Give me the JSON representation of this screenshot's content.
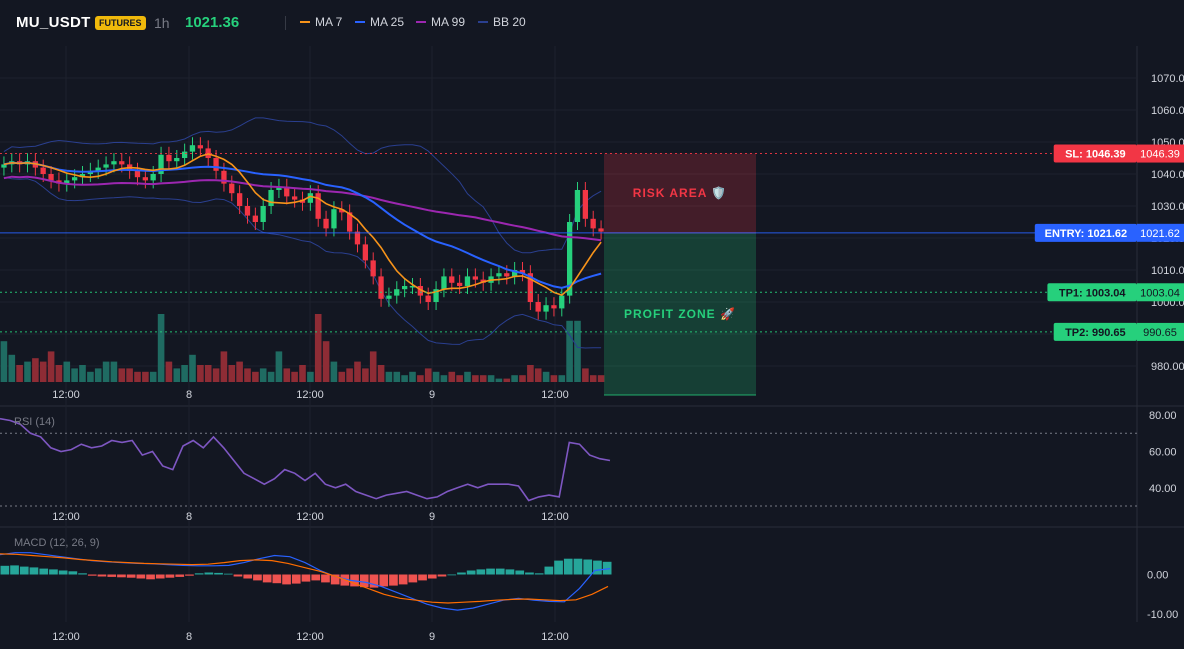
{
  "header": {
    "symbol": "MU_USDT",
    "badge": "FUTURES",
    "timeframe": "1h",
    "price": "1021.36",
    "legend": [
      {
        "label": "MA 7",
        "color": "#f7931a"
      },
      {
        "label": "MA 25",
        "color": "#2962ff"
      },
      {
        "label": "MA 99",
        "color": "#9c27b0"
      },
      {
        "label": "BB 20",
        "color": "#2a3f8f"
      }
    ]
  },
  "colors": {
    "up": "#26d07c",
    "down": "#f23645",
    "vol_up": "#1f6b62",
    "vol_down": "#8e2c35",
    "rsi": "#7e57c2",
    "macd": "#2962ff",
    "signal": "#ff6d00",
    "hist_up": "#26a69a",
    "hist_down": "#ef5350"
  },
  "chart_data": [
    {
      "type": "candlestick",
      "title": "MU_USDT",
      "x_ticks": [
        "12:00",
        "8",
        "12:00",
        "9",
        "12:00"
      ],
      "ylim": [
        975,
        1080
      ],
      "y_ticks": [
        "1070.00",
        "1060.00",
        "1050.00",
        "1040.00",
        "1030.00",
        "1020.00",
        "1010.00",
        "1000.00",
        "990.00",
        "980.00"
      ],
      "candles_close": [
        1043,
        1044,
        1043,
        1044,
        1042,
        1040,
        1038,
        1037,
        1038,
        1039,
        1040,
        1041,
        1042,
        1043,
        1044,
        1043,
        1041,
        1039,
        1038,
        1040,
        1046,
        1044,
        1045,
        1047,
        1049,
        1048,
        1045,
        1041,
        1037,
        1034,
        1030,
        1027,
        1025,
        1030,
        1035,
        1036,
        1033,
        1032,
        1031,
        1034,
        1026,
        1023,
        1029,
        1028,
        1022,
        1018,
        1013,
        1008,
        1001,
        1002,
        1004,
        1005,
        1005,
        1002,
        1000,
        1004,
        1008,
        1006,
        1005,
        1008,
        1007,
        1006,
        1008,
        1009,
        1008,
        1010,
        1009,
        1000,
        997,
        999,
        998,
        1002,
        1025,
        1035,
        1026,
        1023,
        1022
      ],
      "volume": [
        0.6,
        0.4,
        0.25,
        0.3,
        0.35,
        0.3,
        0.45,
        0.25,
        0.3,
        0.2,
        0.25,
        0.15,
        0.2,
        0.3,
        0.3,
        0.2,
        0.2,
        0.15,
        0.15,
        0.15,
        1.0,
        0.3,
        0.2,
        0.25,
        0.4,
        0.25,
        0.25,
        0.2,
        0.45,
        0.25,
        0.3,
        0.2,
        0.15,
        0.2,
        0.15,
        0.45,
        0.2,
        0.15,
        0.25,
        0.15,
        1.0,
        0.6,
        0.3,
        0.15,
        0.2,
        0.3,
        0.2,
        0.45,
        0.25,
        0.15,
        0.15,
        0.1,
        0.15,
        0.1,
        0.2,
        0.15,
        0.1,
        0.15,
        0.1,
        0.15,
        0.1,
        0.1,
        0.1,
        0.05,
        0.05,
        0.1,
        0.1,
        0.25,
        0.2,
        0.15,
        0.1,
        0.1,
        0.9,
        0.9,
        0.2,
        0.1,
        0.1
      ],
      "levels": [
        {
          "label": "SL: 1046.39",
          "price": "1046.39",
          "value": 1046.39,
          "color": "#f23645"
        },
        {
          "label": "ENTRY: 1021.62",
          "price": "1021.62",
          "value": 1021.62,
          "color": "#2962ff"
        },
        {
          "label": "TP1: 1003.04",
          "price": "1003.04",
          "value": 1003.04,
          "color": "#26d07c"
        },
        {
          "label": "TP2: 990.65",
          "price": "990.65",
          "value": 990.65,
          "color": "#26d07c"
        }
      ],
      "zones": [
        {
          "label": "RISK AREA 🛡️",
          "from": 1021.62,
          "to": 1046.39,
          "color": "#f23645"
        },
        {
          "label": "PROFIT ZONE 🚀",
          "from": 986,
          "to": 1021.62,
          "color": "#26d07c"
        }
      ]
    },
    {
      "type": "line",
      "title": "RSI (14)",
      "ylim": [
        30,
        85
      ],
      "y_ticks": [
        "80.00",
        "60.00",
        "40.00"
      ],
      "bands": [
        70,
        30
      ],
      "values": [
        78,
        77,
        75,
        70,
        68,
        62,
        60,
        61,
        64,
        62,
        63,
        66,
        65,
        66,
        58,
        60,
        52,
        50,
        63,
        66,
        62,
        68,
        62,
        55,
        48,
        45,
        42,
        45,
        50,
        48,
        44,
        48,
        42,
        40,
        42,
        38,
        36,
        34,
        36,
        37,
        38,
        36,
        34,
        35,
        38,
        40,
        42,
        40,
        42,
        42,
        42,
        41,
        33,
        35,
        36,
        35,
        65,
        64,
        58,
        56,
        55
      ]
    },
    {
      "type": "bar",
      "title": "MACD (12, 26, 9)",
      "ylim": [
        -12,
        12
      ],
      "y_ticks": [
        "0.00",
        "-10.00"
      ],
      "histogram": [
        2.2,
        2.3,
        2.0,
        1.8,
        1.5,
        1.3,
        1.0,
        0.8,
        0.3,
        -0.3,
        -0.5,
        -0.6,
        -0.7,
        -0.8,
        -1.0,
        -1.2,
        -1.0,
        -0.8,
        -0.6,
        -0.3,
        0.3,
        0.5,
        0.4,
        0.2,
        -0.5,
        -1.0,
        -1.5,
        -2.0,
        -2.2,
        -2.5,
        -2.3,
        -1.8,
        -1.5,
        -2.0,
        -2.5,
        -2.8,
        -3.0,
        -3.2,
        -3.3,
        -3.0,
        -2.8,
        -2.5,
        -2.0,
        -1.5,
        -1.0,
        -0.5,
        0.0,
        0.5,
        1.0,
        1.3,
        1.5,
        1.5,
        1.3,
        1.0,
        0.5,
        0.3,
        2.0,
        3.5,
        4.0,
        4.0,
        3.8,
        3.5,
        3.2
      ],
      "macd": [
        5,
        5.5,
        5.5,
        5.0,
        4.5,
        4.0,
        3.5,
        3.2,
        3.0,
        2.8,
        2.7,
        2.5,
        2.3,
        2.2,
        2.2,
        2.3,
        3.0,
        4.0,
        4.8,
        4.5,
        3.0,
        1.0,
        -0.5,
        -1.5,
        -2.0,
        -3.0,
        -4.5,
        -6.0,
        -7.5,
        -8.5,
        -9.0,
        -8.5,
        -7.5,
        -6.5,
        -6.0,
        -6.5,
        -6.8,
        -6.9,
        -3.5,
        1.0,
        1.5
      ],
      "signal": [
        5.2,
        5.1,
        4.8,
        4.5,
        4.2,
        3.8,
        3.5,
        3.2,
        3.0,
        2.8,
        2.7,
        2.6,
        2.5,
        2.6,
        3.0,
        3.5,
        3.7,
        3.5,
        2.8,
        1.8,
        0.8,
        -0.5,
        -2.0,
        -3.5,
        -5.0,
        -6.0,
        -6.5,
        -7.0,
        -7.2,
        -7.0,
        -6.8,
        -6.5,
        -6.3,
        -6.2,
        -6.4,
        -6.6,
        -6.4,
        -5.0,
        -3.0
      ]
    }
  ]
}
